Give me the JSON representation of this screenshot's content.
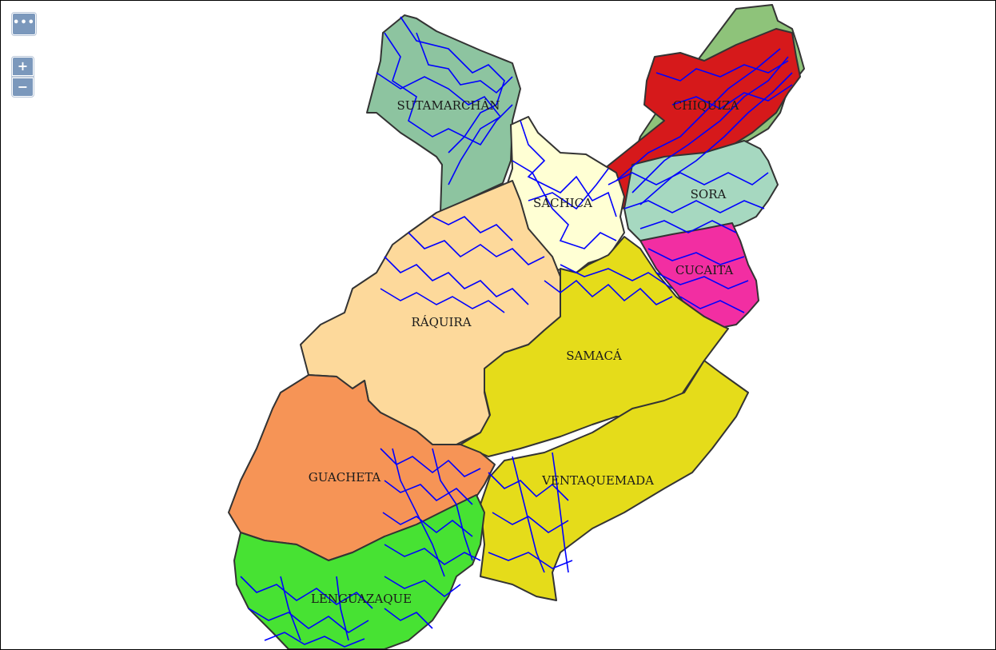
{
  "controls": {
    "layers_glyph": "•••",
    "zoom_in_glyph": "+",
    "zoom_out_glyph": "−",
    "button_color": "#7b98bc"
  },
  "map": {
    "road_color": "#0000ff",
    "regions": [
      {
        "id": "sutamarchan",
        "label": "SUTAMARCHÁN",
        "color": "#8dc4a0"
      },
      {
        "id": "chiquiza",
        "label": "CHIQUIZA",
        "color": "#8ec37a"
      },
      {
        "id": "chiquiza-red",
        "label": "",
        "color": "#d6191b"
      },
      {
        "id": "sachica",
        "label": "SÁCHICA",
        "color": "#ffffd4"
      },
      {
        "id": "sora",
        "label": "SORA",
        "color": "#a6d8c0"
      },
      {
        "id": "cucaita",
        "label": "CUCAITA",
        "color": "#f22ea2"
      },
      {
        "id": "raquira",
        "label": "RÁQUIRA",
        "color": "#fdd99b"
      },
      {
        "id": "samaca",
        "label": "SAMACÁ",
        "color": "#e5dc1a"
      },
      {
        "id": "guacheta",
        "label": "GUACHETA",
        "color": "#f69456"
      },
      {
        "id": "ventaquemada",
        "label": "VENTAQUEMADA",
        "color": "#e5dc1a"
      },
      {
        "id": "lenguazaque",
        "label": "LENGUAZAQUE",
        "color": "#47e233"
      }
    ]
  }
}
